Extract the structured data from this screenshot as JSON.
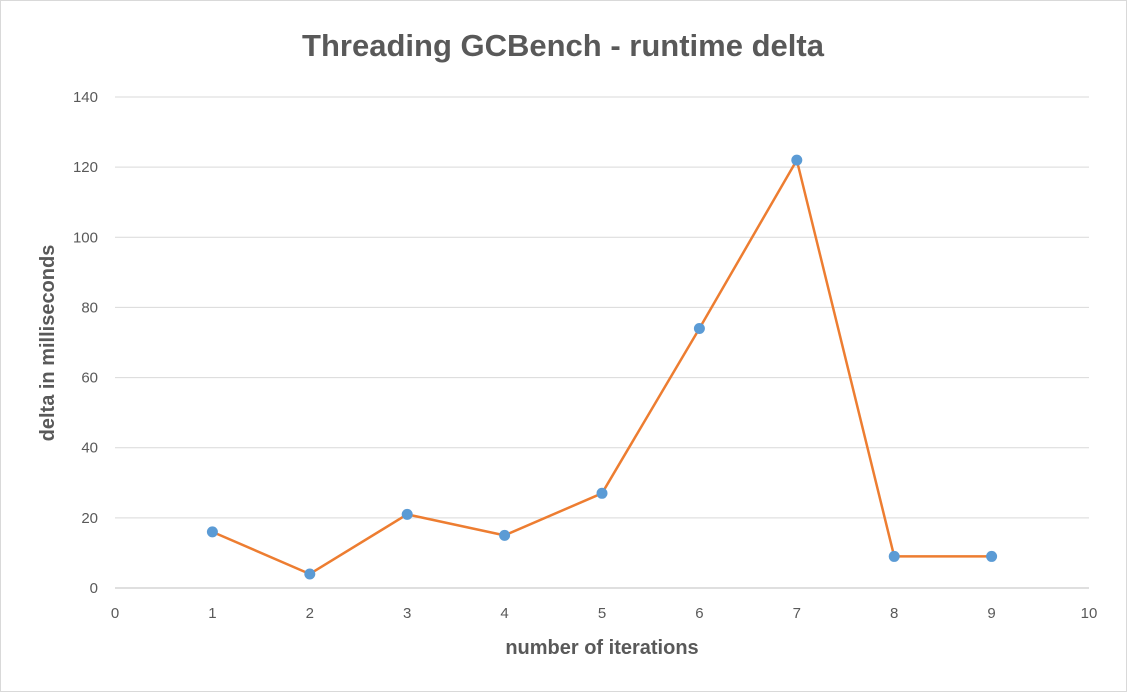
{
  "chart_data": {
    "type": "scatter",
    "title": "Threading GCBench - runtime delta",
    "xlabel": "number of iterations",
    "ylabel": "delta in milliseconds",
    "xlim": [
      0,
      10
    ],
    "ylim": [
      0,
      140
    ],
    "x_ticks": [
      0,
      1,
      2,
      3,
      4,
      5,
      6,
      7,
      8,
      9,
      10
    ],
    "y_ticks": [
      0,
      20,
      40,
      60,
      80,
      100,
      120,
      140
    ],
    "grid": "horizontal",
    "legend": "none",
    "series": [
      {
        "x": [
          1,
          2,
          3,
          4,
          5,
          6,
          7,
          8,
          9
        ],
        "y": [
          16,
          4,
          21,
          15,
          27,
          74,
          122,
          9,
          9
        ],
        "line_color": "#ed7d31",
        "marker_color": "#5b9bd5"
      }
    ]
  }
}
